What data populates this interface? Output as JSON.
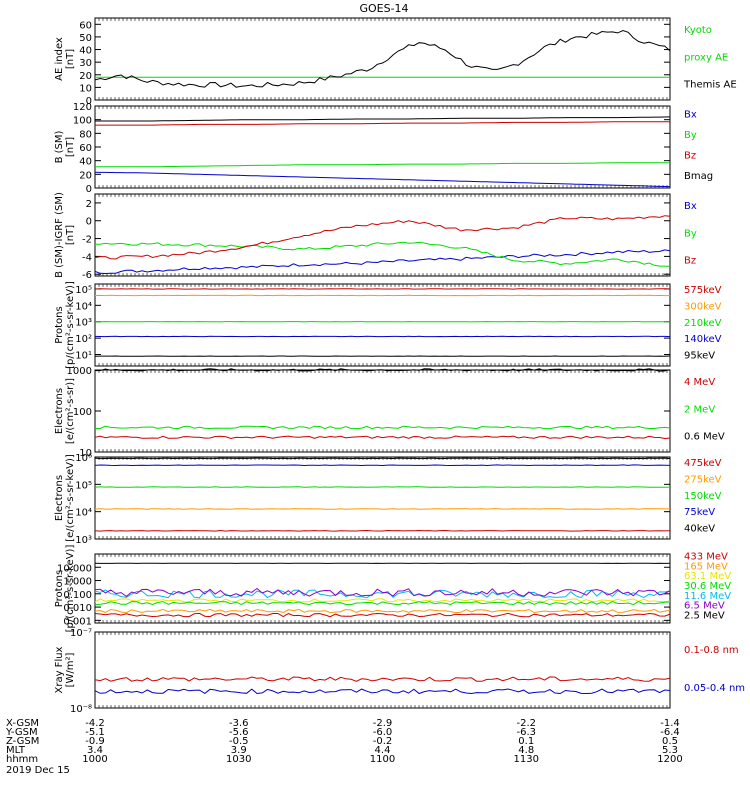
{
  "title": "GOES-14",
  "colors": {
    "black": "#000000",
    "blue": "#0000cc",
    "green": "#00dd00",
    "red": "#cc0000",
    "orange": "#ff9900",
    "yellow": "#e6e600",
    "cyan": "#00bbee",
    "purple": "#8800cc"
  },
  "chart_data": [
    {
      "id": "ae",
      "type": "line",
      "ylabel": [
        "AE index",
        "[nT]"
      ],
      "scale": "linear",
      "ylim": [
        0,
        65
      ],
      "ticks": [
        0,
        10,
        20,
        30,
        40,
        50,
        60
      ],
      "tick_labels": [
        "0",
        "10",
        "20",
        "30",
        "40",
        "50",
        "60"
      ],
      "series": [
        {
          "name": "Kyoto proxy AE",
          "color": "#00dd00",
          "values": [
            18,
            18,
            18,
            18,
            18,
            18,
            18,
            18,
            18,
            18,
            18,
            18
          ]
        },
        {
          "name": "Themis AE",
          "color": "#000000",
          "values": [
            16,
            20,
            15,
            13,
            12,
            12,
            11,
            12,
            13,
            16,
            20,
            25,
            37,
            46,
            40,
            27,
            22,
            30,
            42,
            49,
            52,
            55,
            46,
            40
          ]
        }
      ],
      "legend": [
        "Kyoto",
        "proxy AE",
        "Themis AE"
      ]
    },
    {
      "id": "b",
      "type": "line",
      "ylabel": [
        "B (SM)",
        "[nT]"
      ],
      "scale": "linear",
      "ylim": [
        0,
        120
      ],
      "ticks": [
        0,
        20,
        40,
        60,
        80,
        100,
        120
      ],
      "tick_labels": [
        "0",
        "20",
        "40",
        "60",
        "80",
        "100",
        "120"
      ],
      "series": [
        {
          "name": "Bx",
          "color": "#0000cc",
          "values": [
            23,
            22,
            20,
            18,
            16,
            14,
            12,
            10,
            8,
            6,
            4,
            2
          ]
        },
        {
          "name": "By",
          "color": "#00dd00",
          "values": [
            31,
            31,
            32,
            33,
            34,
            34,
            35,
            35,
            36,
            36,
            37,
            37
          ]
        },
        {
          "name": "Bz",
          "color": "#cc0000",
          "values": [
            92,
            92,
            93,
            93,
            94,
            94,
            95,
            95,
            96,
            96,
            97,
            97
          ]
        },
        {
          "name": "Bmag",
          "color": "#000000",
          "values": [
            98,
            98,
            99,
            100,
            100,
            101,
            101,
            102,
            102,
            103,
            103,
            104
          ]
        }
      ],
      "legend": [
        "Bx",
        "By",
        "Bz",
        "Bmag"
      ]
    },
    {
      "id": "bdiff",
      "type": "line",
      "ylabel": [
        "B (SM)-IGRF (SM)",
        "[nT]"
      ],
      "scale": "linear",
      "ylim": [
        -6.2,
        3
      ],
      "ticks": [
        -6,
        -4,
        -2,
        0,
        2
      ],
      "tick_labels": [
        "-6",
        "-4",
        "-2",
        "0",
        "2"
      ],
      "series": [
        {
          "name": "Bx",
          "color": "#0000cc",
          "values": [
            -5.8,
            -5.6,
            -5.3,
            -5.2,
            -4.9,
            -4.8,
            -4.5,
            -4.3,
            -4.0,
            -3.8,
            -3.5,
            -3.4
          ]
        },
        {
          "name": "By",
          "color": "#00dd00",
          "values": [
            -2.5,
            -2.6,
            -2.7,
            -2.9,
            -3.2,
            -2.8,
            -2.4,
            -3.0,
            -4.4,
            -4.8,
            -4.3,
            -5.1
          ]
        },
        {
          "name": "Bz",
          "color": "#cc0000",
          "values": [
            -4.2,
            -4.0,
            -3.6,
            -2.8,
            -1.6,
            -0.6,
            0.0,
            -1.0,
            -0.8,
            0.3,
            0.2,
            0.6
          ]
        }
      ],
      "legend": [
        "Bx",
        "By",
        "Bz"
      ]
    },
    {
      "id": "protons",
      "type": "line",
      "ylabel": [
        "Protons",
        "[p/(cm²-s-sr-keV)]"
      ],
      "scale": "log",
      "ylim": [
        0.3,
        5.3
      ],
      "ticks": [
        1,
        2,
        3,
        4,
        5
      ],
      "tick_labels": [
        "10¹",
        "10²",
        "10³",
        "10⁴",
        "10⁵"
      ],
      "series": [
        {
          "name": "575keV",
          "color": "#cc0000",
          "values": [
            5.0
          ]
        },
        {
          "name": "300keV",
          "color": "#ff9900",
          "values": [
            4.6
          ]
        },
        {
          "name": "210keV",
          "color": "#00dd00",
          "values": [
            3.0
          ]
        },
        {
          "name": "140keV",
          "color": "#0000cc",
          "values": [
            2.1
          ]
        },
        {
          "name": "95keV",
          "color": "#000000",
          "values": [
            0.9
          ]
        }
      ],
      "legend": [
        "575keV",
        "300keV",
        "210keV",
        "140keV",
        "95keV"
      ]
    },
    {
      "id": "electrons1",
      "type": "line",
      "ylabel": [
        "Electrons",
        "[e/(cm²-s-sr)]"
      ],
      "scale": "log",
      "ylim": [
        1,
        3
      ],
      "ticks": [
        1,
        2,
        3
      ],
      "tick_labels": [
        "10",
        "100",
        "1000"
      ],
      "series": [
        {
          "name": "4 MeV",
          "color": "#cc0000",
          "values": [
            1.36
          ]
        },
        {
          "name": "2 MeV",
          "color": "#00dd00",
          "values": [
            1.6
          ]
        },
        {
          "name": "0.6 MeV",
          "color": "#000000",
          "values": [
            3.0
          ]
        }
      ],
      "legend": [
        "4 MeV",
        "2 MeV",
        "0.6 MeV"
      ]
    },
    {
      "id": "electrons2",
      "type": "line",
      "ylabel": [
        "Electrons",
        "[e/(cm²-s-sr-keV)]"
      ],
      "scale": "log",
      "ylim": [
        3,
        6
      ],
      "ticks": [
        3,
        4,
        5,
        6
      ],
      "tick_labels": [
        "10³",
        "10⁴",
        "10⁵",
        "10⁶"
      ],
      "series": [
        {
          "name": "475keV",
          "color": "#cc0000",
          "values": [
            3.3
          ]
        },
        {
          "name": "275keV",
          "color": "#ff9900",
          "values": [
            4.1
          ]
        },
        {
          "name": "150keV",
          "color": "#00dd00",
          "values": [
            4.9
          ]
        },
        {
          "name": "75keV",
          "color": "#0000cc",
          "values": [
            5.7
          ]
        },
        {
          "name": "40keV",
          "color": "#000000",
          "values": [
            5.95
          ]
        }
      ],
      "legend": [
        "475keV",
        "275keV",
        "150keV",
        "75keV",
        "40keV"
      ]
    },
    {
      "id": "protons2",
      "type": "line",
      "ylabel": [
        "Protons",
        "[p/(cm²-s-sr-keV)]"
      ],
      "scale": "log",
      "ylim": [
        -3.2,
        2
      ],
      "ticks": [
        -3,
        -2,
        -1,
        0,
        1
      ],
      "tick_labels": [
        "0.001",
        "0.010",
        "0.100",
        "1.000",
        "10.000"
      ],
      "series": [
        {
          "name": "433 MeV",
          "color": "#cc0000",
          "values": [
            -2.6
          ]
        },
        {
          "name": "165 MeV",
          "color": "#ff9900",
          "values": [
            -2.3
          ]
        },
        {
          "name": "63.1 MeV",
          "color": "#e6e600",
          "values": [
            -1.5
          ]
        },
        {
          "name": "30.6 MeV",
          "color": "#00dd00",
          "values": [
            -1.7
          ]
        },
        {
          "name": "11.6 MeV",
          "color": "#00bbee",
          "values": [
            -1.0
          ]
        },
        {
          "name": "6.5 MeV",
          "color": "#8800cc",
          "values": [
            -0.9
          ]
        },
        {
          "name": "2.5 MeV",
          "color": "#000000",
          "values": [
            1.3
          ]
        }
      ],
      "legend": [
        "433 MeV",
        "165 MeV",
        "63.1 MeV",
        "30.6 MeV",
        "11.6 MeV",
        "6.5 MeV",
        "2.5 MeV"
      ]
    },
    {
      "id": "xray",
      "type": "line",
      "ylabel": [
        "Xray Flux",
        "[W/m²]"
      ],
      "scale": "log",
      "ylim": [
        -8,
        -7
      ],
      "ticks": [
        -8,
        -7
      ],
      "tick_labels": [
        "10⁻⁸",
        "10⁻⁷"
      ],
      "series": [
        {
          "name": "0.1-0.8 nm",
          "color": "#cc0000",
          "values": [
            -7.62
          ]
        },
        {
          "name": "0.05-0.4 nm",
          "color": "#0000cc",
          "values": [
            -7.78
          ]
        }
      ],
      "legend": [
        "0.1-0.8 nm",
        "0.05-0.4 nm"
      ]
    }
  ],
  "xaxis": {
    "rows": [
      {
        "label": "X-GSM",
        "values": [
          "-4.2",
          "-3.6",
          "-2.9",
          "-2.2",
          "-1.4"
        ]
      },
      {
        "label": "Y-GSM",
        "values": [
          "-5.1",
          "-5.6",
          "-6.0",
          "-6.3",
          "-6.4"
        ]
      },
      {
        "label": "Z-GSM",
        "values": [
          "-0.9",
          "-0.5",
          "-0.2",
          "0.1",
          "0.5"
        ]
      },
      {
        "label": "MLT",
        "values": [
          "3.4",
          "3.9",
          "4.4",
          "4.8",
          "5.3"
        ]
      },
      {
        "label": "hhmm",
        "values": [
          "1000",
          "1030",
          "1100",
          "1130",
          "1200"
        ]
      }
    ],
    "date": "2019 Dec 15"
  }
}
